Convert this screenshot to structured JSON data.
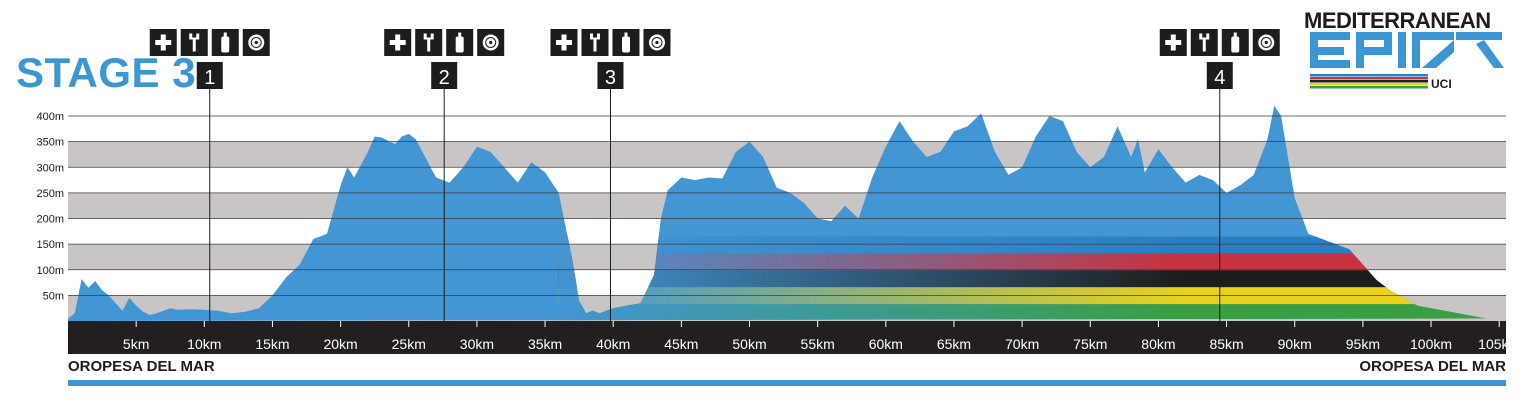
{
  "stage_title": "STAGE 3",
  "logo": {
    "name": "MEDITERRANEAN",
    "wordmark": "EPIC",
    "badge": "UCI"
  },
  "start_location": "OROPESA DEL MAR",
  "finish_location": "OROPESA DEL MAR",
  "colors": {
    "accent": "#3b97d3",
    "profile_fill": "#4296d4",
    "band": "#c9c5c5",
    "axis_band": "#231f20",
    "rainbow": [
      "#2a7fc4",
      "#c7323f",
      "#1d1d1b",
      "#e8d21c",
      "#3a9e43"
    ]
  },
  "feed_zone_icons": [
    "medical-cross-icon",
    "wrench-icon",
    "bottle-icon",
    "wheel-icon"
  ],
  "chart_data": {
    "type": "area",
    "title": "",
    "xlabel": "",
    "ylabel": "",
    "xlim": [
      0,
      105.5
    ],
    "ylim": [
      0,
      400
    ],
    "grid": true,
    "x_ticks": [
      5,
      10,
      15,
      20,
      25,
      30,
      35,
      40,
      45,
      50,
      55,
      60,
      65,
      70,
      75,
      80,
      85,
      90,
      95,
      100,
      105
    ],
    "x_tick_labels": [
      "5km",
      "10km",
      "15km",
      "20km",
      "25km",
      "30km",
      "35km",
      "40km",
      "45km",
      "50km",
      "55km",
      "60km",
      "65km",
      "70km",
      "75km",
      "80km",
      "85km",
      "90km",
      "95km",
      "100km",
      "105km"
    ],
    "y_ticks": [
      50,
      100,
      150,
      200,
      250,
      300,
      350,
      400
    ],
    "y_tick_labels": [
      "50m",
      "100m",
      "150m",
      "200m",
      "250m",
      "300m",
      "350m",
      "400m"
    ],
    "waypoints": [
      {
        "label": "1",
        "km": 10.4
      },
      {
        "label": "2",
        "km": 27.6
      },
      {
        "label": "3",
        "km": 39.8
      },
      {
        "label": "4",
        "km": 84.5
      }
    ],
    "series": [
      {
        "elevation_km": [
          0,
          0.5,
          1.0,
          1.5,
          2.0,
          2.5,
          3.0,
          3.5,
          4.0,
          4.5,
          5.0,
          5.5,
          6.0,
          6.5,
          7.0,
          7.5,
          8.0,
          9.0,
          10.0,
          11.0,
          12.0,
          13.0,
          14.0,
          15.0,
          16.0,
          17.0,
          18.0,
          19.0,
          20.0,
          20.5,
          21.0,
          22.0,
          22.5,
          23.0,
          24.0,
          24.5,
          25.0,
          25.5,
          26.0,
          27.0,
          28.0,
          29.0,
          30.0,
          31.0,
          32.0,
          33.0,
          34.0,
          35.0,
          36.0,
          37.0,
          37.5,
          38.0,
          38.5,
          39.0,
          40.0,
          41.0,
          42.0,
          43.0,
          43.5,
          44.0,
          45.0,
          46.0,
          47.0,
          48.0,
          49.0,
          50.0,
          51.0,
          52.0,
          53.0,
          54.0,
          55.0,
          56.0,
          57.0,
          58.0,
          59.0,
          60.0,
          61.0,
          62.0,
          63.0,
          64.0,
          65.0,
          66.0,
          67.0,
          68.0,
          69.0,
          70.0,
          71.0,
          72.0,
          73.0,
          74.0,
          75.0,
          76.0,
          77.0,
          78.0,
          78.5,
          79.0,
          80.0,
          81.0,
          82.0,
          83.0,
          84.0,
          85.0,
          86.0,
          87.0,
          88.0,
          88.5,
          89.0,
          90.0,
          91.0,
          92.0,
          93.0,
          94.0,
          95.0,
          96.0,
          97.0,
          98.0,
          99.0,
          100.0,
          101.0,
          102.0,
          103.0,
          104.0,
          105.0,
          105.5
        ],
        "elevation_m": [
          5,
          15,
          82,
          65,
          78,
          60,
          50,
          35,
          20,
          45,
          30,
          18,
          12,
          15,
          20,
          25,
          22,
          23,
          22,
          20,
          15,
          18,
          25,
          50,
          85,
          110,
          160,
          170,
          265,
          300,
          280,
          330,
          360,
          358,
          345,
          360,
          365,
          355,
          330,
          280,
          270,
          300,
          340,
          330,
          300,
          270,
          310,
          290,
          250,
          120,
          40,
          15,
          20,
          15,
          25,
          30,
          35,
          90,
          200,
          255,
          280,
          275,
          280,
          278,
          330,
          350,
          320,
          260,
          250,
          230,
          200,
          195,
          225,
          200,
          280,
          340,
          390,
          350,
          320,
          330,
          370,
          380,
          405,
          330,
          285,
          300,
          360,
          400,
          390,
          330,
          300,
          320,
          380,
          320,
          355,
          290,
          335,
          300,
          270,
          285,
          275,
          250,
          265,
          285,
          355,
          420,
          400,
          240,
          170,
          160,
          150,
          140,
          110,
          80,
          60,
          45,
          30,
          25,
          20,
          15,
          10,
          5,
          5
        ]
      }
    ]
  }
}
